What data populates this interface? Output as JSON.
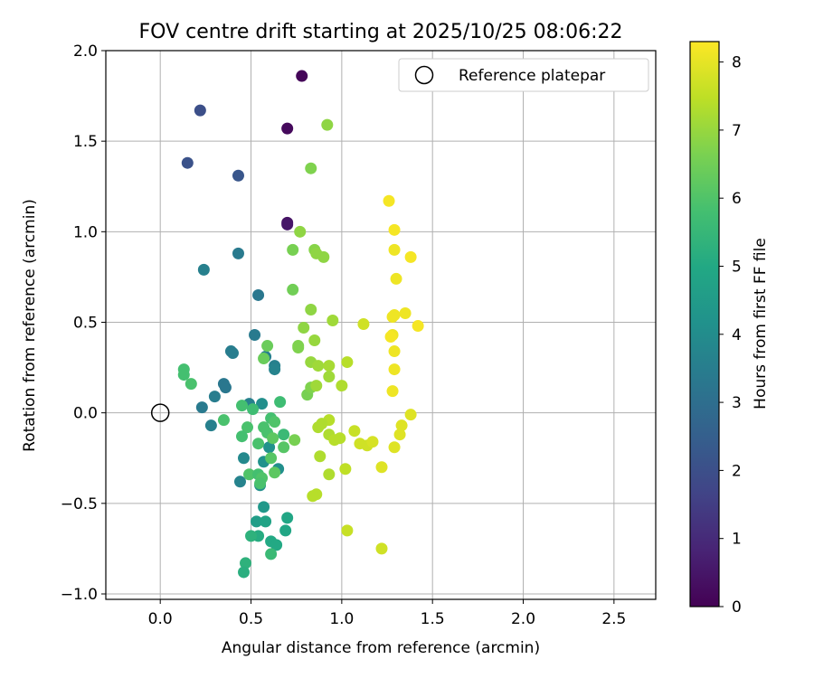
{
  "chart_data": {
    "type": "scatter",
    "title": "FOV centre drift starting at 2025/10/25 08:06:22",
    "xlabel": "Angular distance from reference (arcmin)",
    "ylabel": "Rotation from reference (arcmin)",
    "xlim": [
      -0.3,
      2.73
    ],
    "ylim": [
      -1.03,
      2.0
    ],
    "xticks": [
      0.0,
      0.5,
      1.0,
      1.5,
      2.0,
      2.5
    ],
    "xtick_labels": [
      "0.0",
      "0.5",
      "1.0",
      "1.5",
      "2.0",
      "2.5"
    ],
    "yticks": [
      -1.0,
      -0.5,
      0.0,
      0.5,
      1.0,
      1.5,
      2.0
    ],
    "ytick_labels": [
      "−1.0",
      "−0.5",
      "0.0",
      "0.5",
      "1.0",
      "1.5",
      "2.0"
    ],
    "grid": true,
    "legend": {
      "position": "top-right",
      "entries": [
        "Reference platepar"
      ]
    },
    "reference": {
      "x": 0.0,
      "y": 0.0,
      "label": "Reference platepar"
    },
    "colorbar": {
      "label": "Hours from first FF file",
      "range": [
        0,
        8.3
      ],
      "ticks": [
        0,
        1,
        2,
        3,
        4,
        5,
        6,
        7,
        8
      ],
      "tick_labels": [
        "0",
        "1",
        "2",
        "3",
        "4",
        "5",
        "6",
        "7",
        "8"
      ],
      "colormap": "viridis"
    },
    "points": [
      {
        "x": 0.78,
        "y": 1.86,
        "c": 0.1
      },
      {
        "x": 0.7,
        "y": 1.57,
        "c": 0.2
      },
      {
        "x": 0.7,
        "y": 1.05,
        "c": 0.4
      },
      {
        "x": 0.7,
        "y": 1.04,
        "c": 0.5
      },
      {
        "x": 0.22,
        "y": 1.67,
        "c": 2.0
      },
      {
        "x": 0.15,
        "y": 1.38,
        "c": 2.1
      },
      {
        "x": 0.43,
        "y": 1.31,
        "c": 2.2
      },
      {
        "x": 0.43,
        "y": 0.88,
        "c": 3.4
      },
      {
        "x": 0.24,
        "y": 0.79,
        "c": 3.6
      },
      {
        "x": 0.54,
        "y": 0.65,
        "c": 3.3
      },
      {
        "x": 0.52,
        "y": 0.43,
        "c": 3.4
      },
      {
        "x": 0.39,
        "y": 0.34,
        "c": 3.5
      },
      {
        "x": 0.4,
        "y": 0.33,
        "c": 3.5
      },
      {
        "x": 0.58,
        "y": 0.31,
        "c": 3.6
      },
      {
        "x": 0.63,
        "y": 0.26,
        "c": 3.6
      },
      {
        "x": 0.63,
        "y": 0.24,
        "c": 3.7
      },
      {
        "x": 0.35,
        "y": 0.16,
        "c": 3.3
      },
      {
        "x": 0.36,
        "y": 0.14,
        "c": 3.3
      },
      {
        "x": 0.3,
        "y": 0.09,
        "c": 3.5
      },
      {
        "x": 0.23,
        "y": 0.03,
        "c": 3.4
      },
      {
        "x": 0.28,
        "y": -0.07,
        "c": 3.6
      },
      {
        "x": 0.49,
        "y": 0.05,
        "c": 3.6
      },
      {
        "x": 0.56,
        "y": 0.05,
        "c": 4.1
      },
      {
        "x": 0.6,
        "y": -0.19,
        "c": 4.2
      },
      {
        "x": 0.46,
        "y": -0.25,
        "c": 3.9
      },
      {
        "x": 0.57,
        "y": -0.27,
        "c": 4.2
      },
      {
        "x": 0.65,
        "y": -0.31,
        "c": 4.1
      },
      {
        "x": 0.44,
        "y": -0.38,
        "c": 3.7
      },
      {
        "x": 0.55,
        "y": -0.4,
        "c": 4.1
      },
      {
        "x": 0.57,
        "y": -0.52,
        "c": 4.4
      },
      {
        "x": 0.53,
        "y": -0.6,
        "c": 4.6
      },
      {
        "x": 0.58,
        "y": -0.6,
        "c": 4.8
      },
      {
        "x": 0.7,
        "y": -0.58,
        "c": 4.9
      },
      {
        "x": 0.69,
        "y": -0.65,
        "c": 4.9
      },
      {
        "x": 0.61,
        "y": -0.71,
        "c": 5.0
      },
      {
        "x": 0.64,
        "y": -0.73,
        "c": 5.0
      },
      {
        "x": 0.54,
        "y": -0.68,
        "c": 5.1
      },
      {
        "x": 0.5,
        "y": -0.68,
        "c": 5.3
      },
      {
        "x": 0.47,
        "y": -0.83,
        "c": 5.3
      },
      {
        "x": 0.46,
        "y": -0.88,
        "c": 5.2
      },
      {
        "x": 0.61,
        "y": -0.78,
        "c": 5.6
      },
      {
        "x": 0.13,
        "y": 0.24,
        "c": 5.8
      },
      {
        "x": 0.13,
        "y": 0.21,
        "c": 5.8
      },
      {
        "x": 0.17,
        "y": 0.16,
        "c": 5.9
      },
      {
        "x": 0.35,
        "y": -0.04,
        "c": 5.9
      },
      {
        "x": 0.45,
        "y": 0.04,
        "c": 5.8
      },
      {
        "x": 0.51,
        "y": 0.02,
        "c": 5.7
      },
      {
        "x": 0.66,
        "y": 0.06,
        "c": 5.7
      },
      {
        "x": 0.61,
        "y": -0.03,
        "c": 5.8
      },
      {
        "x": 0.63,
        "y": -0.05,
        "c": 6.0
      },
      {
        "x": 0.57,
        "y": -0.08,
        "c": 5.9
      },
      {
        "x": 0.48,
        "y": -0.08,
        "c": 5.9
      },
      {
        "x": 0.45,
        "y": -0.13,
        "c": 5.8
      },
      {
        "x": 0.59,
        "y": -0.11,
        "c": 5.9
      },
      {
        "x": 0.54,
        "y": -0.17,
        "c": 5.9
      },
      {
        "x": 0.68,
        "y": -0.12,
        "c": 5.6
      },
      {
        "x": 0.62,
        "y": -0.14,
        "c": 6.2
      },
      {
        "x": 0.68,
        "y": -0.19,
        "c": 6.1
      },
      {
        "x": 0.61,
        "y": -0.25,
        "c": 6.1
      },
      {
        "x": 0.63,
        "y": -0.33,
        "c": 6.2
      },
      {
        "x": 0.49,
        "y": -0.34,
        "c": 6.0
      },
      {
        "x": 0.54,
        "y": -0.34,
        "c": 5.8
      },
      {
        "x": 0.56,
        "y": -0.36,
        "c": 6.0
      },
      {
        "x": 0.55,
        "y": -0.39,
        "c": 5.9
      },
      {
        "x": 0.59,
        "y": 0.37,
        "c": 6.4
      },
      {
        "x": 0.57,
        "y": 0.3,
        "c": 6.4
      },
      {
        "x": 0.73,
        "y": 0.9,
        "c": 6.6
      },
      {
        "x": 0.73,
        "y": 0.68,
        "c": 6.5
      },
      {
        "x": 0.76,
        "y": 0.36,
        "c": 6.7
      },
      {
        "x": 0.76,
        "y": 0.37,
        "c": 6.7
      },
      {
        "x": 0.74,
        "y": -0.15,
        "c": 6.6
      },
      {
        "x": 0.81,
        "y": 0.1,
        "c": 6.6
      },
      {
        "x": 0.83,
        "y": 0.14,
        "c": 6.7
      },
      {
        "x": 0.83,
        "y": 1.35,
        "c": 6.7
      },
      {
        "x": 0.92,
        "y": 1.59,
        "c": 6.9
      },
      {
        "x": 0.77,
        "y": 1.0,
        "c": 6.9
      },
      {
        "x": 0.85,
        "y": 0.9,
        "c": 6.8
      },
      {
        "x": 0.86,
        "y": 0.88,
        "c": 6.9
      },
      {
        "x": 0.9,
        "y": 0.86,
        "c": 6.9
      },
      {
        "x": 0.83,
        "y": 0.57,
        "c": 6.9
      },
      {
        "x": 0.79,
        "y": 0.47,
        "c": 6.9
      },
      {
        "x": 0.85,
        "y": 0.4,
        "c": 7.0
      },
      {
        "x": 0.83,
        "y": 0.28,
        "c": 7.0
      },
      {
        "x": 0.87,
        "y": 0.26,
        "c": 7.1
      },
      {
        "x": 0.93,
        "y": 0.26,
        "c": 7.2
      },
      {
        "x": 0.86,
        "y": 0.15,
        "c": 7.1
      },
      {
        "x": 0.93,
        "y": 0.2,
        "c": 7.1
      },
      {
        "x": 0.95,
        "y": 0.51,
        "c": 7.1
      },
      {
        "x": 1.0,
        "y": 0.15,
        "c": 7.3
      },
      {
        "x": 1.03,
        "y": 0.28,
        "c": 7.4
      },
      {
        "x": 0.93,
        "y": -0.04,
        "c": 7.4
      },
      {
        "x": 0.89,
        "y": -0.06,
        "c": 7.3
      },
      {
        "x": 0.87,
        "y": -0.08,
        "c": 7.3
      },
      {
        "x": 0.93,
        "y": -0.12,
        "c": 7.3
      },
      {
        "x": 0.96,
        "y": -0.15,
        "c": 7.4
      },
      {
        "x": 0.99,
        "y": -0.14,
        "c": 7.4
      },
      {
        "x": 0.88,
        "y": -0.24,
        "c": 7.3
      },
      {
        "x": 0.93,
        "y": -0.34,
        "c": 7.3
      },
      {
        "x": 1.02,
        "y": -0.31,
        "c": 7.5
      },
      {
        "x": 0.86,
        "y": -0.45,
        "c": 7.4
      },
      {
        "x": 0.84,
        "y": -0.46,
        "c": 7.4
      },
      {
        "x": 1.03,
        "y": -0.65,
        "c": 7.6
      },
      {
        "x": 1.22,
        "y": -0.75,
        "c": 7.7
      },
      {
        "x": 1.12,
        "y": 0.49,
        "c": 7.7
      },
      {
        "x": 1.07,
        "y": -0.1,
        "c": 7.6
      },
      {
        "x": 1.1,
        "y": -0.17,
        "c": 7.7
      },
      {
        "x": 1.14,
        "y": -0.18,
        "c": 7.7
      },
      {
        "x": 1.17,
        "y": -0.16,
        "c": 7.8
      },
      {
        "x": 1.22,
        "y": -0.3,
        "c": 7.9
      },
      {
        "x": 1.26,
        "y": 1.17,
        "c": 8.2
      },
      {
        "x": 1.29,
        "y": 1.01,
        "c": 8.2
      },
      {
        "x": 1.29,
        "y": 0.9,
        "c": 8.1
      },
      {
        "x": 1.38,
        "y": 0.86,
        "c": 8.2
      },
      {
        "x": 1.3,
        "y": 0.74,
        "c": 8.1
      },
      {
        "x": 1.35,
        "y": 0.55,
        "c": 8.1
      },
      {
        "x": 1.28,
        "y": 0.53,
        "c": 8.1
      },
      {
        "x": 1.29,
        "y": 0.54,
        "c": 8.1
      },
      {
        "x": 1.42,
        "y": 0.48,
        "c": 8.2
      },
      {
        "x": 1.28,
        "y": 0.43,
        "c": 8.1
      },
      {
        "x": 1.27,
        "y": 0.42,
        "c": 8.2
      },
      {
        "x": 1.29,
        "y": 0.34,
        "c": 8.1
      },
      {
        "x": 1.29,
        "y": 0.24,
        "c": 8.1
      },
      {
        "x": 1.28,
        "y": 0.12,
        "c": 8.1
      },
      {
        "x": 1.38,
        "y": -0.01,
        "c": 7.9
      },
      {
        "x": 1.33,
        "y": -0.07,
        "c": 7.9
      },
      {
        "x": 1.32,
        "y": -0.12,
        "c": 7.9
      },
      {
        "x": 1.29,
        "y": -0.19,
        "c": 7.9
      }
    ]
  }
}
